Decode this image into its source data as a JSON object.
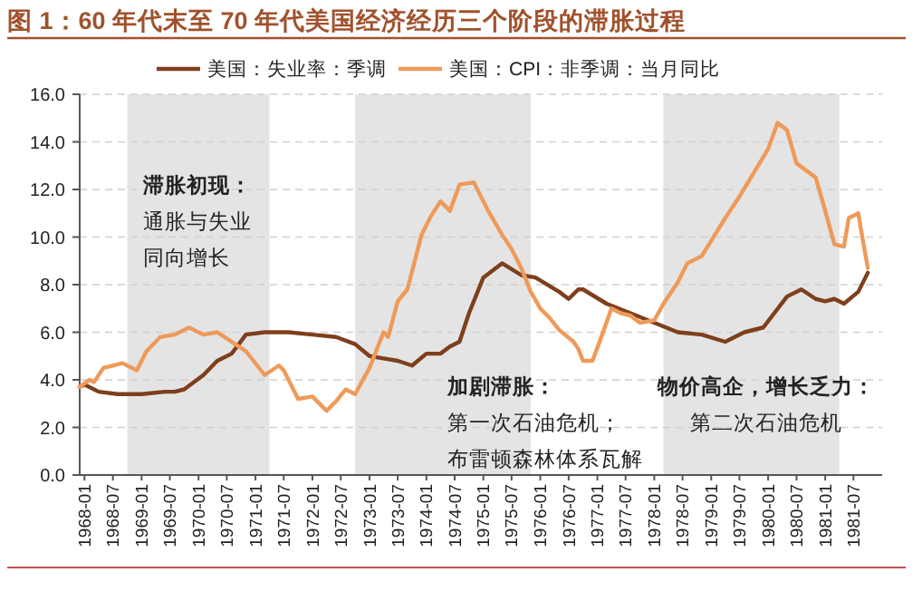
{
  "chart_data": {
    "type": "line",
    "title": "图 1：60 年代末至 70 年代美国经济经历三个阶段的滞胀过程",
    "xlim": [
      "1967-12",
      "1982-01"
    ],
    "xticks": [
      "1968-01",
      "1968-07",
      "1969-01",
      "1969-07",
      "1970-01",
      "1970-07",
      "1971-01",
      "1971-07",
      "1972-01",
      "1972-07",
      "1973-01",
      "1973-07",
      "1974-01",
      "1974-07",
      "1975-01",
      "1975-07",
      "1976-01",
      "1976-07",
      "1977-01",
      "1977-07",
      "1978-01",
      "1978-07",
      "1979-01",
      "1979-07",
      "1980-01",
      "1980-07",
      "1981-01",
      "1981-07"
    ],
    "ylim": [
      0,
      16
    ],
    "yticks": [
      {
        "value": 0,
        "label": "0.0"
      },
      {
        "value": 2,
        "label": "2.0"
      },
      {
        "value": 4,
        "label": "4.0"
      },
      {
        "value": 6,
        "label": "6.0"
      },
      {
        "value": 8,
        "label": "8.0"
      },
      {
        "value": 10,
        "label": "10.0"
      },
      {
        "value": 12,
        "label": "12.0"
      },
      {
        "value": 14,
        "label": "14.0"
      },
      {
        "value": 16,
        "label": "16.0"
      }
    ],
    "grid": "y",
    "legend": "top",
    "marker": "none",
    "line_style": "solid",
    "series": [
      {
        "name": "美国：失业率：季调",
        "color": "#7e3f1c",
        "x": [
          "1967-12",
          "1968-01",
          "1968-04",
          "1968-08",
          "1969-01",
          "1969-06",
          "1969-08",
          "1969-10",
          "1970-02",
          "1970-05",
          "1970-08",
          "1970-11",
          "1971-03",
          "1971-08",
          "1972-01",
          "1972-06",
          "1972-10",
          "1973-01",
          "1973-04",
          "1973-07",
          "1973-10",
          "1974-01",
          "1974-04",
          "1974-06",
          "1974-08",
          "1974-10",
          "1975-01",
          "1975-05",
          "1975-09",
          "1975-12",
          "1976-05",
          "1976-07",
          "1976-09",
          "1976-10",
          "1977-03",
          "1977-08",
          "1978-01",
          "1978-06",
          "1978-11",
          "1979-04",
          "1979-08",
          "1979-12",
          "1980-05",
          "1980-08",
          "1980-11",
          "1981-01",
          "1981-03",
          "1981-05",
          "1981-08",
          "1981-10"
        ],
        "values": [
          3.7,
          3.8,
          3.5,
          3.4,
          3.4,
          3.5,
          3.5,
          3.6,
          4.2,
          4.8,
          5.1,
          5.9,
          6.0,
          6.0,
          5.9,
          5.8,
          5.5,
          5.0,
          4.9,
          4.8,
          4.6,
          5.1,
          5.1,
          5.4,
          5.6,
          6.8,
          8.3,
          8.9,
          8.4,
          8.3,
          7.7,
          7.4,
          7.8,
          7.8,
          7.2,
          6.8,
          6.4,
          6.0,
          5.9,
          5.6,
          6.0,
          6.2,
          7.5,
          7.8,
          7.4,
          7.3,
          7.4,
          7.2,
          7.7,
          8.5
        ]
      },
      {
        "name": "美国：CPI：非季调：当月同比",
        "color": "#ee9a5a",
        "x": [
          "1967-12",
          "1968-02",
          "1968-03",
          "1968-05",
          "1968-09",
          "1968-12",
          "1969-02",
          "1969-05",
          "1969-08",
          "1969-11",
          "1970-02",
          "1970-05",
          "1970-08",
          "1970-11",
          "1971-03",
          "1971-06",
          "1971-07",
          "1971-10",
          "1972-01",
          "1972-04",
          "1972-06",
          "1972-08",
          "1972-10",
          "1973-01",
          "1973-04",
          "1973-05",
          "1973-07",
          "1973-09",
          "1973-12",
          "1974-02",
          "1974-04",
          "1974-06",
          "1974-08",
          "1974-11",
          "1975-02",
          "1975-05",
          "1975-07",
          "1975-09",
          "1975-11",
          "1976-01",
          "1976-03",
          "1976-05",
          "1976-08",
          "1976-09",
          "1976-10",
          "1976-12",
          "1977-02",
          "1977-04",
          "1977-06",
          "1977-08",
          "1977-10",
          "1978-01",
          "1978-03",
          "1978-06",
          "1978-08",
          "1978-11",
          "1979-04",
          "1979-07",
          "1979-10",
          "1980-01",
          "1980-03",
          "1980-05",
          "1980-07",
          "1980-09",
          "1980-11",
          "1981-01",
          "1981-03",
          "1981-05",
          "1981-06",
          "1981-08",
          "1981-09",
          "1981-10"
        ],
        "values": [
          3.7,
          4.0,
          3.9,
          4.5,
          4.7,
          4.4,
          5.2,
          5.8,
          5.9,
          6.2,
          5.9,
          6.0,
          5.6,
          5.2,
          4.2,
          4.6,
          4.4,
          3.2,
          3.3,
          2.7,
          3.1,
          3.6,
          3.4,
          4.5,
          6.0,
          5.8,
          7.3,
          7.8,
          10.1,
          10.9,
          11.5,
          11.1,
          12.2,
          12.3,
          11.1,
          10.1,
          9.5,
          8.7,
          7.7,
          7.0,
          6.6,
          6.1,
          5.6,
          5.3,
          4.8,
          4.8,
          5.9,
          7.0,
          6.8,
          6.7,
          6.4,
          6.5,
          7.2,
          8.1,
          8.9,
          9.2,
          10.8,
          11.7,
          12.7,
          13.7,
          14.8,
          14.5,
          13.1,
          12.8,
          12.5,
          11.1,
          9.7,
          9.6,
          10.8,
          11.0,
          9.8,
          8.7
        ]
      }
    ],
    "bands": [
      {
        "axis": "x",
        "from": "1968-10",
        "to": "1971-04",
        "color": "#e4e4e4"
      },
      {
        "axis": "x",
        "from": "1972-10",
        "to": "1975-11",
        "color": "#e4e4e4"
      },
      {
        "axis": "x",
        "from": "1978-03",
        "to": "1981-04",
        "color": "#e4e4e4"
      }
    ],
    "annotations": [
      "滞胀初现：",
      "通胀与失业",
      "同向增长",
      "加剧滞胀：",
      "第一次石油危机；",
      "布雷顿森林体系瓦解",
      "物价高企，增长乏力：",
      "第二次石油危机"
    ]
  }
}
